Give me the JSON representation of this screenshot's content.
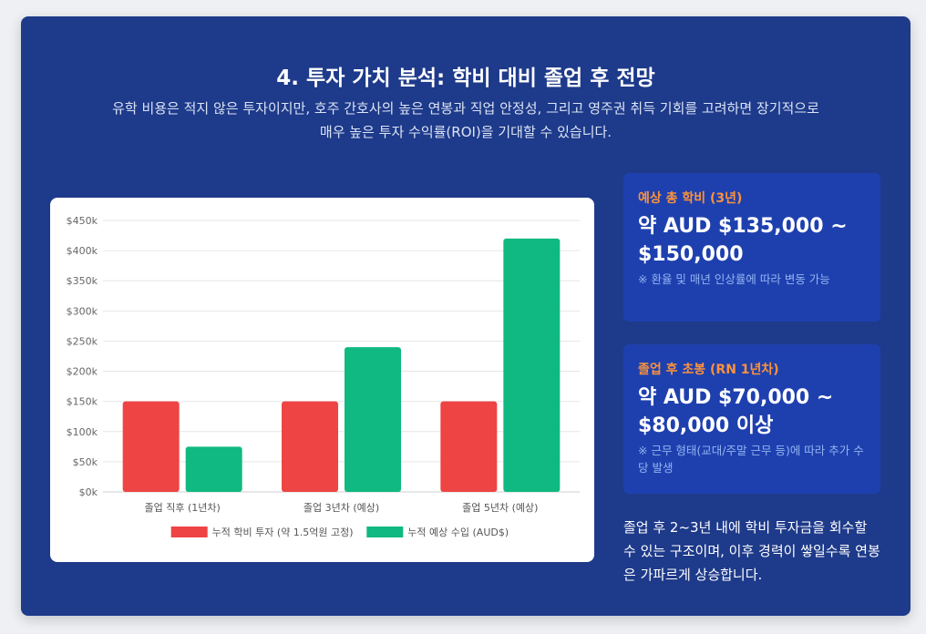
{
  "page": {
    "title": "4. 투자 가치 분석: 학비 대비 졸업 후 전망",
    "intro": "유학 비용은 적지 않은 투자이지만, 호주 간호사의 높은 연봉과 직업 안정성, 그리고 영주권 취득 기회를 고려하면 장기적으로 매우 높은 투자 수익률(ROI)을 기대할 수 있습니다."
  },
  "cards": [
    {
      "label": "예상 총 학비 (3년)",
      "value": "약 AUD $135,000 ~ $150,000",
      "note": "※ 환율 및 매년 인상률에 따라 변동 가능"
    },
    {
      "label": "졸업 후 초봉 (RN 1년차)",
      "value": "약 AUD $70,000 ~ $80,000 이상",
      "note": "※ 근무 형태(교대/주말 근무 등)에 따라 추가 수당 발생"
    }
  ],
  "summary": "졸업 후 2~3년 내에 학비 투자금을 회수할 수 있는 구조이며, 이후 경력이 쌓일수록 연봉은 가파르게 상승합니다.",
  "colors": {
    "panel_bg": "#1e3a8a",
    "card_bg": "#1e40af",
    "accent": "#fb923c",
    "tuition": "#ef4444",
    "income": "#10b981"
  },
  "chart_data": {
    "type": "bar",
    "categories": [
      "졸업 직후 (1년차)",
      "졸업 3년차 (예상)",
      "졸업 5년차 (예상)"
    ],
    "series": [
      {
        "name": "누적 학비 투자 (약 1.5억원 고정)",
        "values": [
          150000,
          150000,
          150000
        ],
        "color": "#ef4444"
      },
      {
        "name": "누적 예상 수입 (AUD$)",
        "values": [
          75000,
          240000,
          420000
        ],
        "color": "#10b981"
      }
    ],
    "y_ticks": [
      "$0k",
      "$50k",
      "$100k",
      "$150k",
      "$200k",
      "$250k",
      "$300k",
      "$350k",
      "$400k",
      "$450k"
    ],
    "ylim": [
      0,
      450000
    ],
    "grid": true,
    "legend_position": "bottom"
  }
}
